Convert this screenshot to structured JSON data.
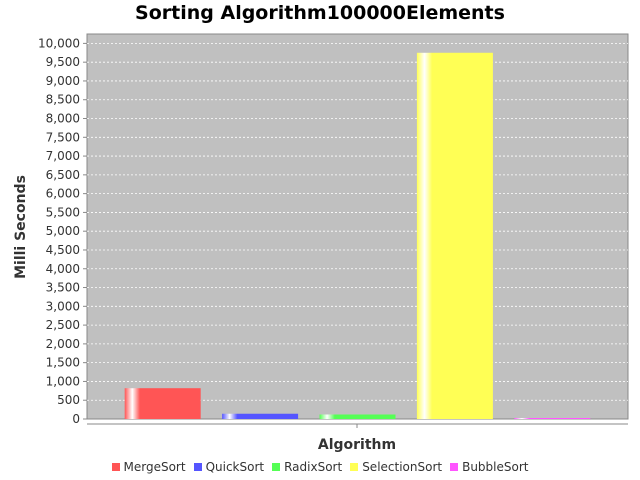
{
  "chart_data": {
    "type": "bar",
    "title": "Sorting Algorithm100000Elements",
    "xlabel": "Algorithm",
    "ylabel": "Milli Seconds",
    "ylim": [
      0,
      10250
    ],
    "yticks": [
      0,
      500,
      1000,
      1500,
      2000,
      2500,
      3000,
      3500,
      4000,
      4500,
      5000,
      5500,
      6000,
      6500,
      7000,
      7500,
      8000,
      8500,
      9000,
      9500,
      10000
    ],
    "ytick_labels": [
      "0",
      "500",
      "1,000",
      "1,500",
      "2,000",
      "2,500",
      "3,000",
      "3,500",
      "4,000",
      "4,500",
      "5,000",
      "5,500",
      "6,000",
      "6,500",
      "7,000",
      "7,500",
      "8,000",
      "8,500",
      "9,000",
      "9,500",
      "10,000"
    ],
    "grid": true,
    "legend_position": "bottom",
    "series": [
      {
        "name": "MergeSort",
        "value": 820,
        "color": "#ff5555"
      },
      {
        "name": "QuickSort",
        "value": 140,
        "color": "#5555ff"
      },
      {
        "name": "RadixSort",
        "value": 120,
        "color": "#55ff55"
      },
      {
        "name": "SelectionSort",
        "value": 9750,
        "color": "#ffff55"
      },
      {
        "name": "BubbleSort",
        "value": 0,
        "color": "#ff55ff"
      }
    ]
  }
}
